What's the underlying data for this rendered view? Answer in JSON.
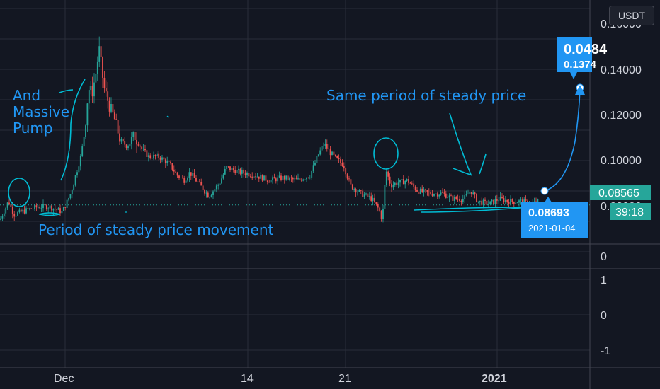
{
  "currency_button": "USDT",
  "colors": {
    "bg": "#131722",
    "up": "#26a69a",
    "down": "#ef5350",
    "accent": "#2196f3",
    "grid": "#2a2e39",
    "drawing": "#00bcd4"
  },
  "annotations": {
    "pump": [
      "And",
      "Massive",
      "Pump"
    ],
    "steady_left": "Period of steady price movement",
    "steady_right": "Same period of steady price"
  },
  "projection": {
    "price": "0.0484",
    "change": "0.1374"
  },
  "point": {
    "price": "0.08693",
    "date": "2021-01-04"
  },
  "current": {
    "price": "0.08565",
    "countdown": "39:18"
  },
  "chart_data": {
    "type": "candlestick",
    "symbol_currency": "USDT",
    "y_ticks": [
      "0.16000",
      "0.14000",
      "0.12000",
      "0.10000",
      "0.08000"
    ],
    "ylim": [
      0.07,
      0.163
    ],
    "x_ticks": [
      "Dec",
      "14",
      "21",
      "2021"
    ],
    "indicator_ticks": [
      "0",
      "1",
      "0",
      "-1"
    ],
    "current_price": 0.08565,
    "path": [
      [
        0,
        0.08
      ],
      [
        12,
        0.087
      ],
      [
        20,
        0.082
      ],
      [
        30,
        0.083
      ],
      [
        42,
        0.084
      ],
      [
        55,
        0.085
      ],
      [
        70,
        0.085
      ],
      [
        88,
        0.083
      ],
      [
        100,
        0.09
      ],
      [
        108,
        0.098
      ],
      [
        115,
        0.105
      ],
      [
        120,
        0.115
      ],
      [
        125,
        0.13
      ],
      [
        130,
        0.128
      ],
      [
        135,
        0.135
      ],
      [
        140,
        0.145
      ],
      [
        147,
        0.13
      ],
      [
        155,
        0.123
      ],
      [
        162,
        0.118
      ],
      [
        170,
        0.11
      ],
      [
        180,
        0.108
      ],
      [
        190,
        0.112
      ],
      [
        200,
        0.107
      ],
      [
        210,
        0.104
      ],
      [
        225,
        0.104
      ],
      [
        240,
        0.101
      ],
      [
        250,
        0.097
      ],
      [
        260,
        0.095
      ],
      [
        268,
        0.098
      ],
      [
        280,
        0.094
      ],
      [
        295,
        0.089
      ],
      [
        310,
        0.094
      ],
      [
        320,
        0.1
      ],
      [
        340,
        0.098
      ],
      [
        360,
        0.097
      ],
      [
        380,
        0.095
      ],
      [
        400,
        0.096
      ],
      [
        420,
        0.095
      ],
      [
        438,
        0.097
      ],
      [
        450,
        0.105
      ],
      [
        458,
        0.109
      ],
      [
        465,
        0.106
      ],
      [
        475,
        0.103
      ],
      [
        485,
        0.101
      ],
      [
        495,
        0.093
      ],
      [
        510,
        0.09
      ],
      [
        525,
        0.088
      ],
      [
        535,
        0.084
      ],
      [
        540,
        0.08
      ],
      [
        545,
        0.099
      ],
      [
        552,
        0.093
      ],
      [
        560,
        0.094
      ],
      [
        575,
        0.095
      ],
      [
        590,
        0.091
      ],
      [
        610,
        0.09
      ],
      [
        625,
        0.09
      ],
      [
        640,
        0.088
      ],
      [
        655,
        0.088
      ],
      [
        665,
        0.091
      ],
      [
        675,
        0.087
      ],
      [
        690,
        0.086
      ],
      [
        705,
        0.088
      ],
      [
        720,
        0.087
      ],
      [
        735,
        0.087
      ],
      [
        750,
        0.086
      ],
      [
        760,
        0.0869
      ]
    ]
  }
}
